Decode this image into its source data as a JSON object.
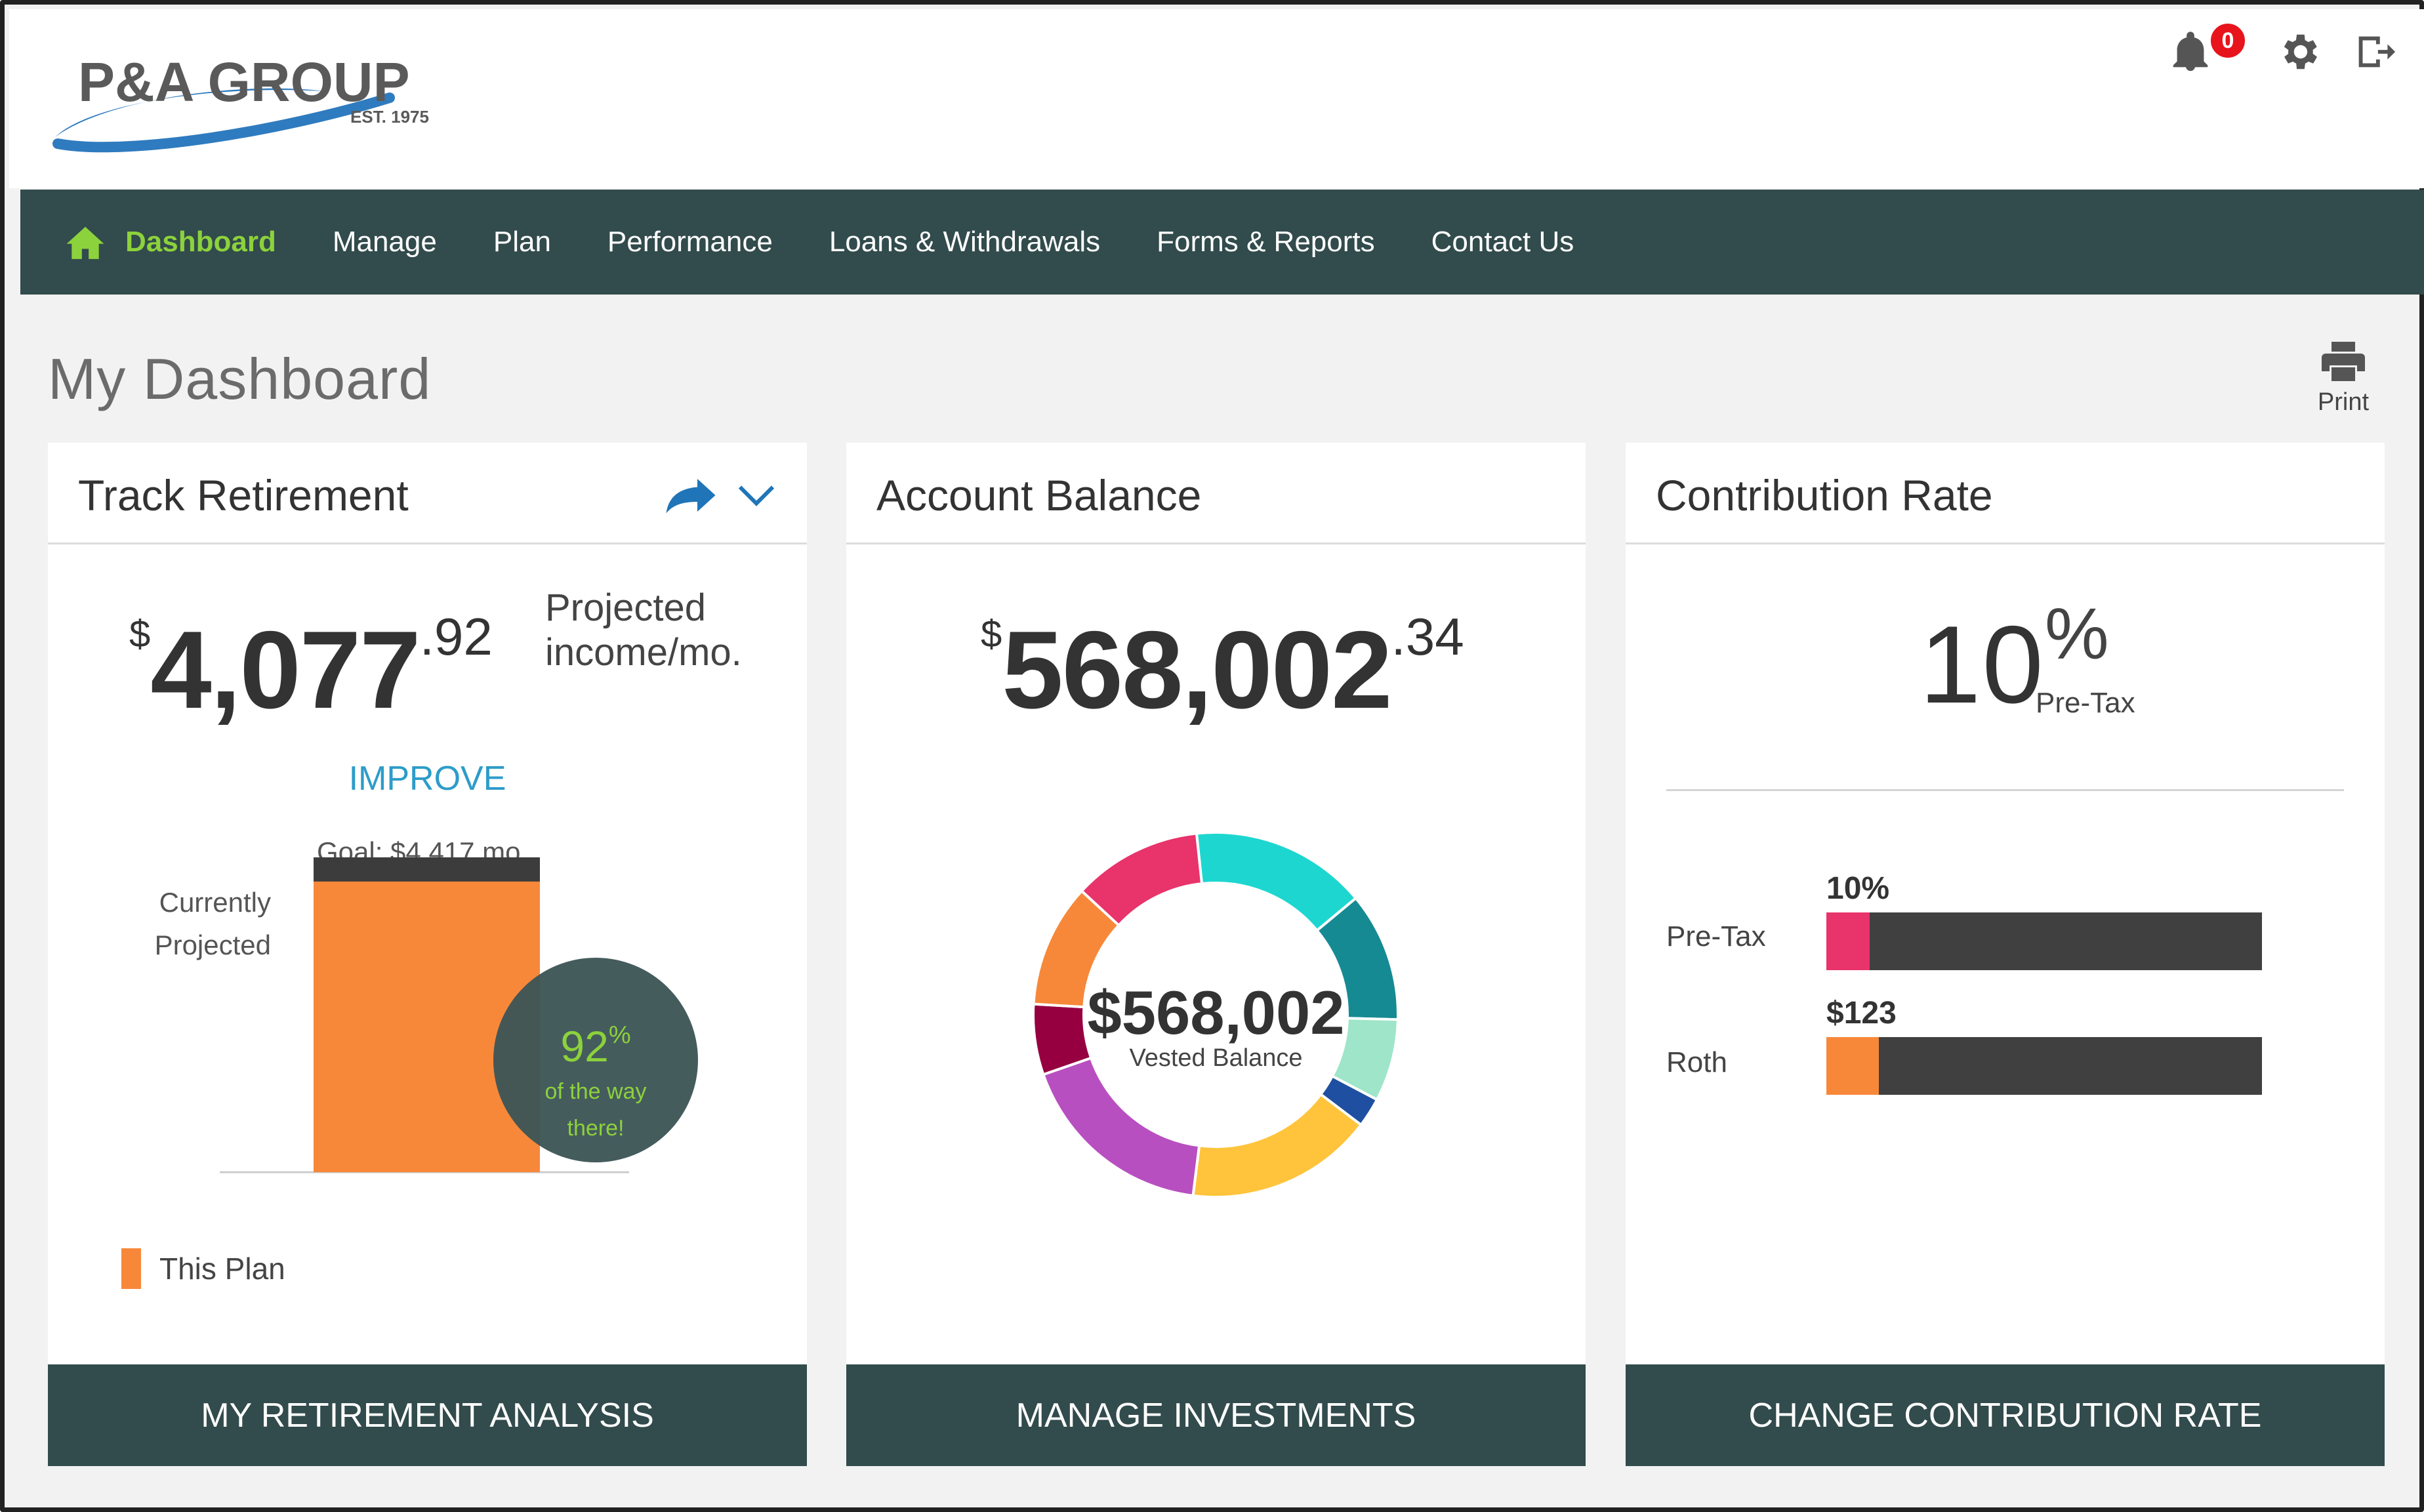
{
  "brand": {
    "name": "P&A GROUP",
    "tagline": "EST. 1975",
    "colors": {
      "primary": "#324b4c",
      "accent_green": "#8cd23c",
      "link_blue": "#2d9cc9",
      "orange": "#f7883a"
    }
  },
  "header": {
    "notification_count": "0",
    "icons": [
      "bell-icon",
      "gear-icon",
      "logout-icon"
    ]
  },
  "nav": {
    "items": [
      {
        "label": "Dashboard",
        "active": true
      },
      {
        "label": "Manage"
      },
      {
        "label": "Plan"
      },
      {
        "label": "Performance"
      },
      {
        "label": "Loans & Withdrawals"
      },
      {
        "label": "Forms & Reports"
      },
      {
        "label": "Contact Us"
      }
    ]
  },
  "page": {
    "title": "My Dashboard",
    "print_label": "Print"
  },
  "track_retirement": {
    "title": "Track Retirement",
    "currency_symbol": "$",
    "income_main": "4,077",
    "income_cents": ".92",
    "income_label": "Projected income/mo.",
    "improve_label": "IMPROVE",
    "goal_label": "Goal: $4,417 mo.",
    "current_label": "Currently Projected",
    "percent_value": "92",
    "percent_sign": "%",
    "percent_caption_1": "of the way",
    "percent_caption_2": "there!",
    "legend_label": "This Plan",
    "button_label": "MY RETIREMENT ANALYSIS"
  },
  "account_balance": {
    "title": "Account Balance",
    "currency_symbol": "$",
    "balance_main": "568,002",
    "balance_cents": ".34",
    "donut_amount": "$568,002",
    "donut_label": "Vested Balance",
    "button_label": "MANAGE INVESTMENTS"
  },
  "contribution_rate": {
    "title": "Contribution Rate",
    "rate_value": "10",
    "rate_sign": "%",
    "rate_type": "Pre-Tax",
    "rows": [
      {
        "label": "Pre-Tax",
        "value": "10%",
        "color": "#e8336b"
      },
      {
        "label": "Roth",
        "value": "$123",
        "color": "#f7883a"
      }
    ],
    "button_label": "CHANGE CONTRIBUTION RATE"
  },
  "chart_data": [
    {
      "type": "bar",
      "title": "Track Retirement",
      "categories": [
        "Currently Projected"
      ],
      "series": [
        {
          "name": "Goal",
          "values": [
            4417
          ]
        },
        {
          "name": "This Plan",
          "values": [
            4077.92
          ]
        }
      ],
      "percent_of_goal": 92,
      "colors": [
        "#3c3c3c",
        "#f7883a"
      ]
    },
    {
      "type": "pie",
      "title": "Vested Balance",
      "total": 568002,
      "slices": [
        {
          "color": "#1ed6d0",
          "value": 15
        },
        {
          "color": "#168a92",
          "value": 11
        },
        {
          "color": "#9ee5c9",
          "value": 7
        },
        {
          "color": "#1f4fa0",
          "value": 2.5
        },
        {
          "color": "#ffc43c",
          "value": 16
        },
        {
          "color": "#b84fc0",
          "value": 17
        },
        {
          "color": "#960040",
          "value": 6
        },
        {
          "color": "#f7883a",
          "value": 10.5
        },
        {
          "color": "#e8336b",
          "value": 11
        }
      ]
    },
    {
      "type": "bar",
      "title": "Contribution Rate",
      "categories": [
        "Pre-Tax",
        "Roth"
      ],
      "values": [
        10,
        12
      ],
      "max": 100,
      "colors": [
        "#e8336b",
        "#f7883a"
      ]
    }
  ]
}
